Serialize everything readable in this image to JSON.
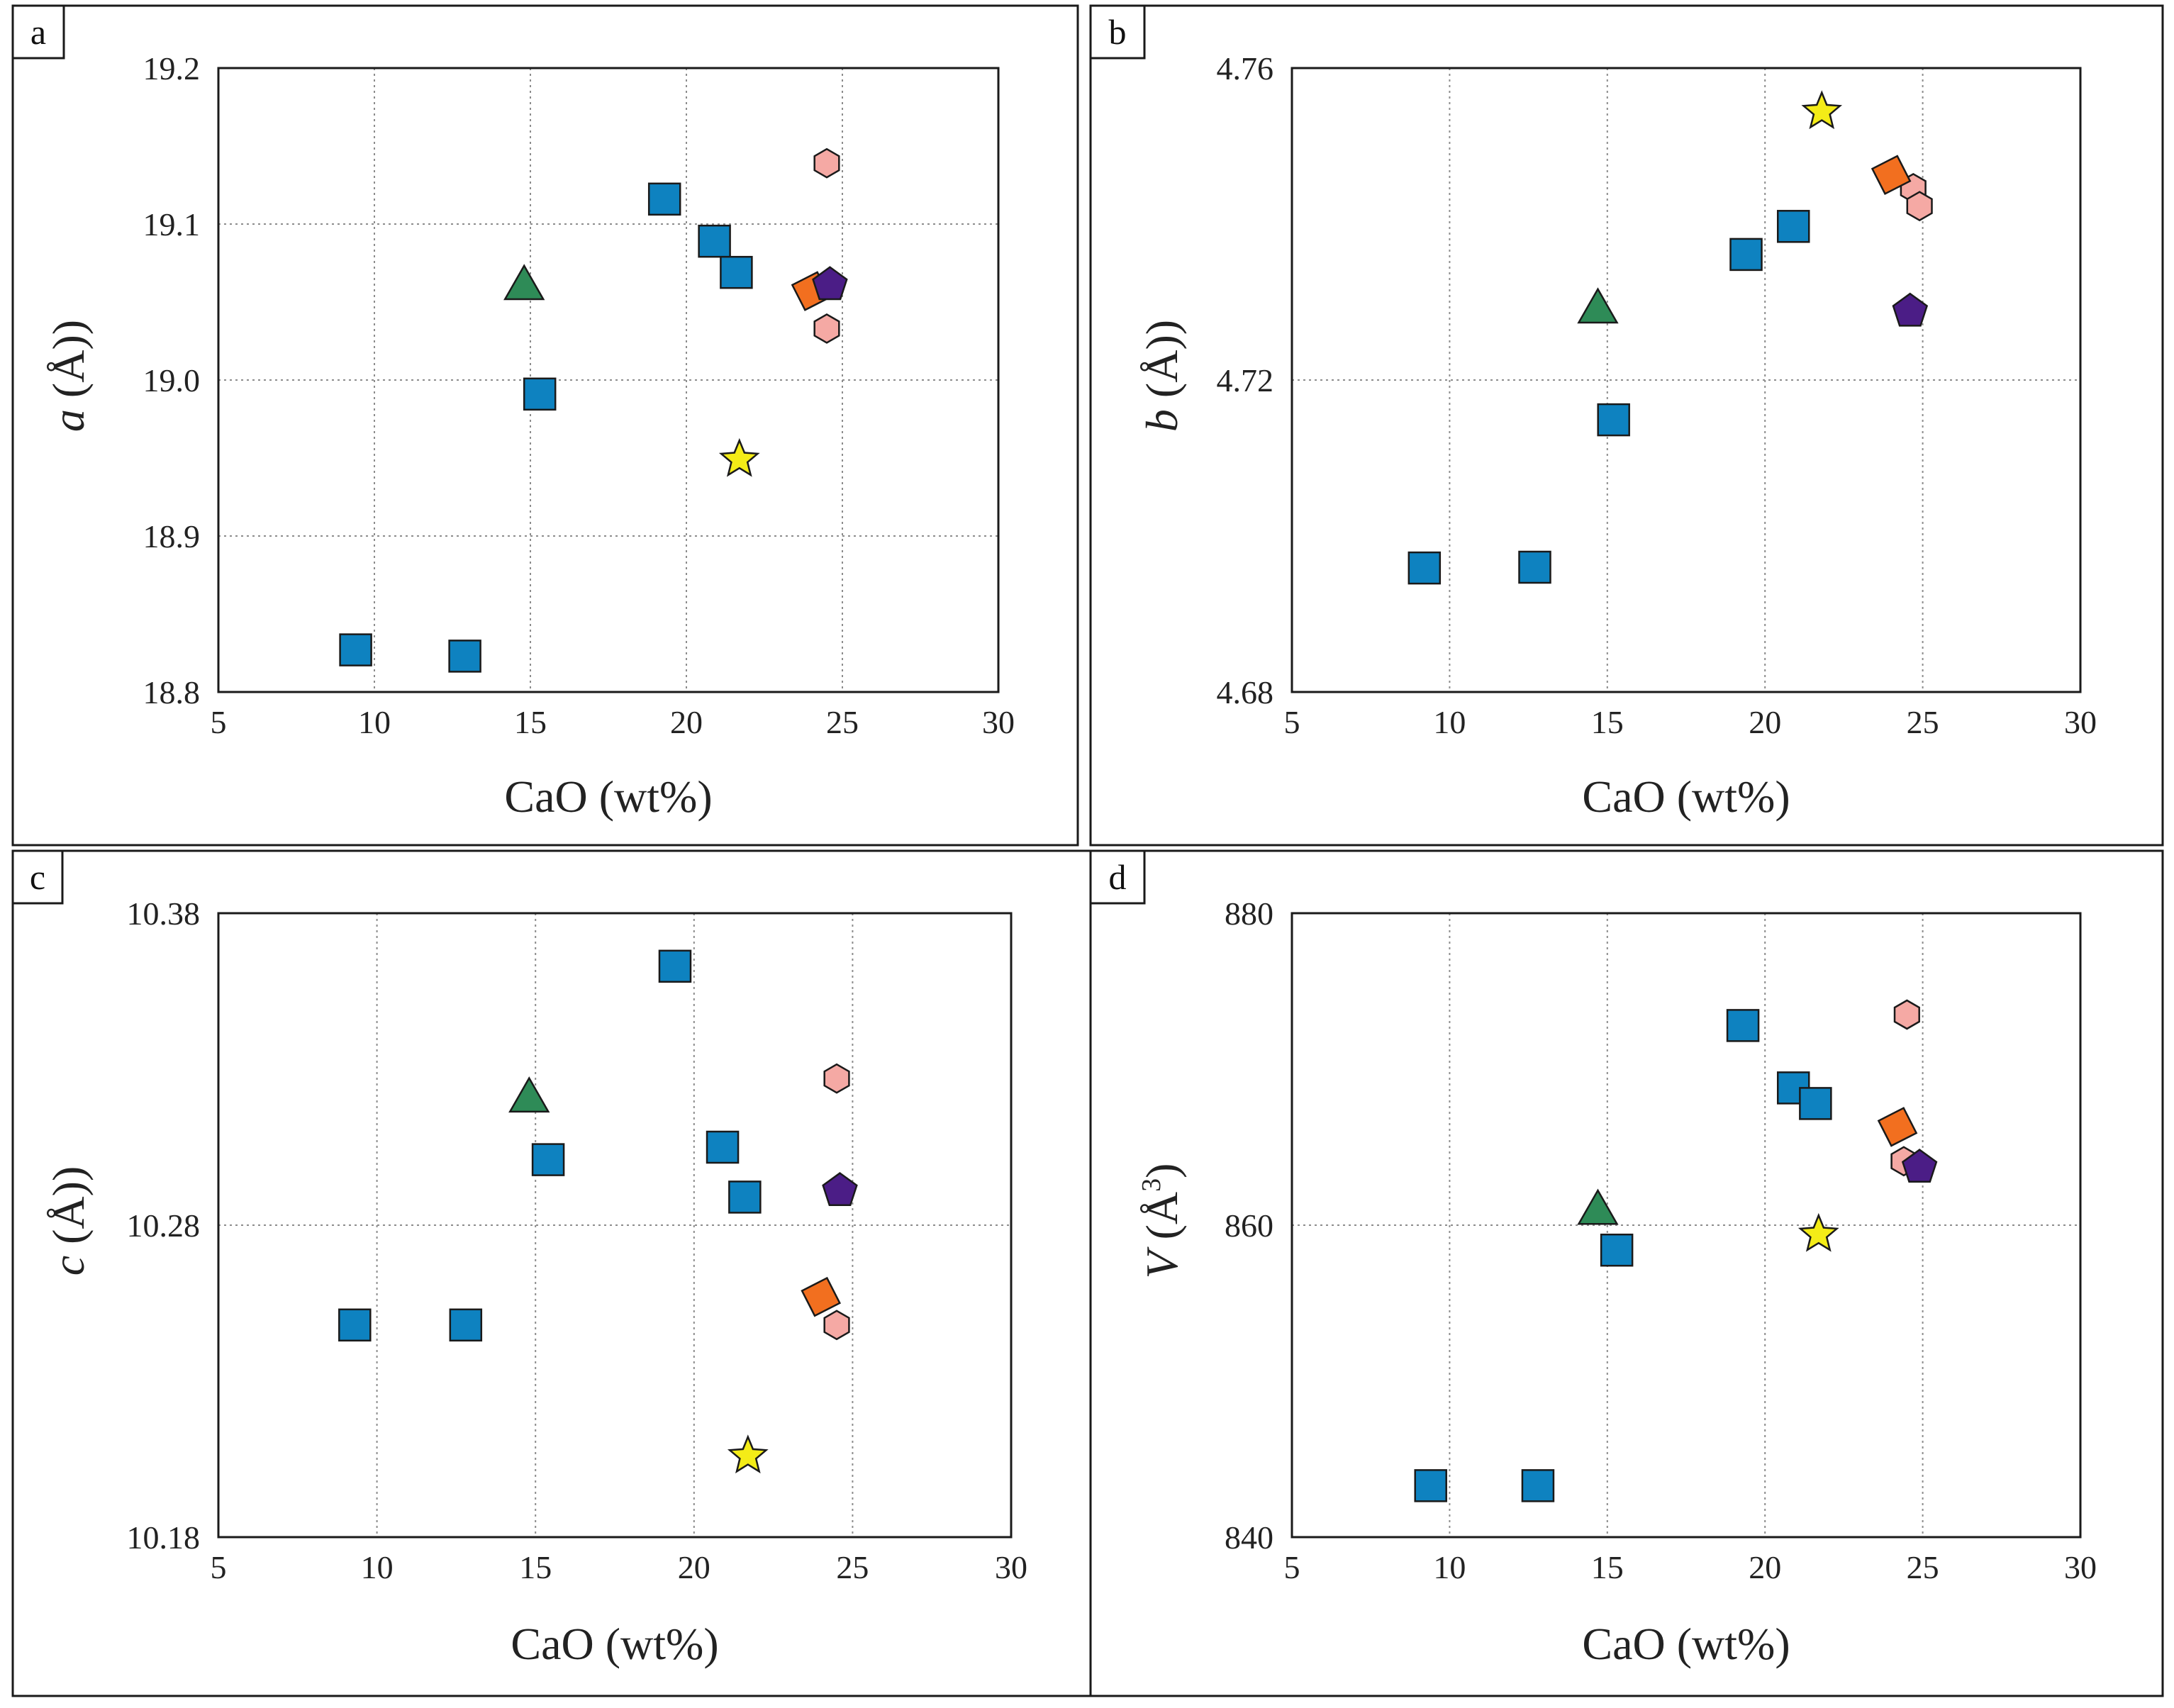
{
  "colors": {
    "square": "#0e82c0",
    "triangle": "#2e8b57",
    "star": "#f4ec17",
    "hexagon": "#f5a9a4",
    "diamond": "#f26f1f",
    "pentagon": "#4b1d86"
  },
  "chart_data": [
    {
      "type": "scatter",
      "panel": "a",
      "xlabel": "CaO (wt%)",
      "ylabel_var": "a",
      "ylabel_unit": " (Å)",
      "ylabel_sup": "",
      "xlim": [
        5,
        30
      ],
      "ylim": [
        18.8,
        19.2
      ],
      "xticks": [
        "5",
        "10",
        "15",
        "20",
        "25",
        "30"
      ],
      "yticks": [
        "18.8",
        "18.9",
        "19.0",
        "19.1",
        "19.2"
      ],
      "grid": "dotted",
      "series": [
        {
          "name": "squares",
          "marker": "square",
          "color": "#0e82c0",
          "points": [
            [
              9.4,
              18.827
            ],
            [
              12.9,
              18.823
            ],
            [
              15.3,
              18.991
            ],
            [
              19.3,
              19.116
            ],
            [
              20.9,
              19.089
            ],
            [
              21.6,
              19.069
            ]
          ]
        },
        {
          "name": "triangle",
          "marker": "triangle",
          "color": "#2e8b57",
          "points": [
            [
              14.8,
              19.061
            ]
          ]
        },
        {
          "name": "star",
          "marker": "star",
          "color": "#f4ec17",
          "points": [
            [
              21.7,
              18.949
            ]
          ]
        },
        {
          "name": "hexagons",
          "marker": "hexagon",
          "color": "#f5a9a4",
          "points": [
            [
              24.5,
              19.139
            ],
            [
              24.5,
              19.033
            ]
          ]
        },
        {
          "name": "diamond",
          "marker": "diamond",
          "color": "#f26f1f",
          "points": [
            [
              24.0,
              19.057
            ]
          ]
        },
        {
          "name": "pentagon",
          "marker": "pentagon",
          "color": "#4b1d86",
          "points": [
            [
              24.6,
              19.061
            ]
          ]
        }
      ]
    },
    {
      "type": "scatter",
      "panel": "b",
      "xlabel": "CaO (wt%)",
      "ylabel_var": "b",
      "ylabel_unit": " (Å)",
      "ylabel_sup": "",
      "xlim": [
        5,
        30
      ],
      "ylim": [
        4.68,
        4.76
      ],
      "xticks": [
        "5",
        "10",
        "15",
        "20",
        "25",
        "30"
      ],
      "yticks": [
        "4.68",
        "4.72",
        "4.76"
      ],
      "grid": "dotted",
      "series": [
        {
          "name": "squares",
          "marker": "square",
          "color": "#0e82c0",
          "points": [
            [
              9.2,
              4.6959
            ],
            [
              12.7,
              4.696
            ],
            [
              15.2,
              4.7149
            ],
            [
              19.4,
              4.7361
            ],
            [
              20.9,
              4.7397
            ]
          ]
        },
        {
          "name": "triangle",
          "marker": "triangle",
          "color": "#2e8b57",
          "points": [
            [
              14.7,
              4.7292
            ]
          ]
        },
        {
          "name": "star",
          "marker": "star",
          "color": "#f4ec17",
          "points": [
            [
              21.8,
              4.7544
            ]
          ]
        },
        {
          "name": "hexagons",
          "marker": "hexagon",
          "color": "#f5a9a4",
          "points": [
            [
              24.7,
              4.7446
            ],
            [
              24.9,
              4.7423
            ]
          ]
        },
        {
          "name": "diamond",
          "marker": "diamond",
          "color": "#f26f1f",
          "points": [
            [
              24.0,
              4.7463
            ]
          ]
        },
        {
          "name": "pentagon",
          "marker": "pentagon",
          "color": "#4b1d86",
          "points": [
            [
              24.6,
              4.7288
            ]
          ]
        }
      ]
    },
    {
      "type": "scatter",
      "panel": "c",
      "xlabel": "CaO (wt%)",
      "ylabel_var": "c",
      "ylabel_unit": " (Å)",
      "ylabel_sup": "",
      "xlim": [
        5,
        30
      ],
      "ylim": [
        10.18,
        10.38
      ],
      "xticks": [
        "5",
        "10",
        "15",
        "20",
        "25",
        "30"
      ],
      "yticks": [
        "10.18",
        "10.28",
        "10.38"
      ],
      "grid": "dotted",
      "series": [
        {
          "name": "squares",
          "marker": "square",
          "color": "#0e82c0",
          "points": [
            [
              9.3,
              10.248
            ],
            [
              12.8,
              10.248
            ],
            [
              15.4,
              10.301
            ],
            [
              19.4,
              10.363
            ],
            [
              20.9,
              10.305
            ],
            [
              21.6,
              10.289
            ]
          ]
        },
        {
          "name": "triangle",
          "marker": "triangle",
          "color": "#2e8b57",
          "points": [
            [
              14.8,
              10.321
            ]
          ]
        },
        {
          "name": "star",
          "marker": "star",
          "color": "#f4ec17",
          "points": [
            [
              21.7,
              10.206
            ]
          ]
        },
        {
          "name": "hexagons",
          "marker": "hexagon",
          "color": "#f5a9a4",
          "points": [
            [
              24.5,
              10.327
            ],
            [
              24.5,
              10.248
            ]
          ]
        },
        {
          "name": "diamond",
          "marker": "diamond",
          "color": "#f26f1f",
          "points": [
            [
              24.0,
              10.257
            ]
          ]
        },
        {
          "name": "pentagon",
          "marker": "pentagon",
          "color": "#4b1d86",
          "points": [
            [
              24.6,
              10.291
            ]
          ]
        }
      ]
    },
    {
      "type": "scatter",
      "panel": "d",
      "xlabel": "CaO (wt%)",
      "ylabel_var": "V",
      "ylabel_unit": " (Å",
      "ylabel_sup": "3",
      "xlim": [
        5,
        30
      ],
      "ylim": [
        840,
        880
      ],
      "xticks": [
        "5",
        "10",
        "15",
        "20",
        "25",
        "30"
      ],
      "yticks": [
        "840",
        "860",
        "880"
      ],
      "grid": "dotted",
      "series": [
        {
          "name": "squares",
          "marker": "square",
          "color": "#0e82c0",
          "points": [
            [
              9.4,
              843.3
            ],
            [
              12.8,
              843.3
            ],
            [
              15.3,
              858.4
            ],
            [
              19.3,
              872.8
            ],
            [
              20.9,
              868.8
            ],
            [
              21.6,
              867.8
            ]
          ]
        },
        {
          "name": "triangle",
          "marker": "triangle",
          "color": "#2e8b57",
          "points": [
            [
              14.7,
              861.0
            ]
          ]
        },
        {
          "name": "star",
          "marker": "star",
          "color": "#f4ec17",
          "points": [
            [
              21.7,
              859.4
            ]
          ]
        },
        {
          "name": "hexagons",
          "marker": "hexagon",
          "color": "#f5a9a4",
          "points": [
            [
              24.5,
              873.5
            ],
            [
              24.4,
              864.1
            ]
          ]
        },
        {
          "name": "diamond",
          "marker": "diamond",
          "color": "#f26f1f",
          "points": [
            [
              24.2,
              866.3
            ]
          ]
        },
        {
          "name": "pentagon",
          "marker": "pentagon",
          "color": "#4b1d86",
          "points": [
            [
              24.9,
              863.7
            ]
          ]
        }
      ]
    }
  ]
}
